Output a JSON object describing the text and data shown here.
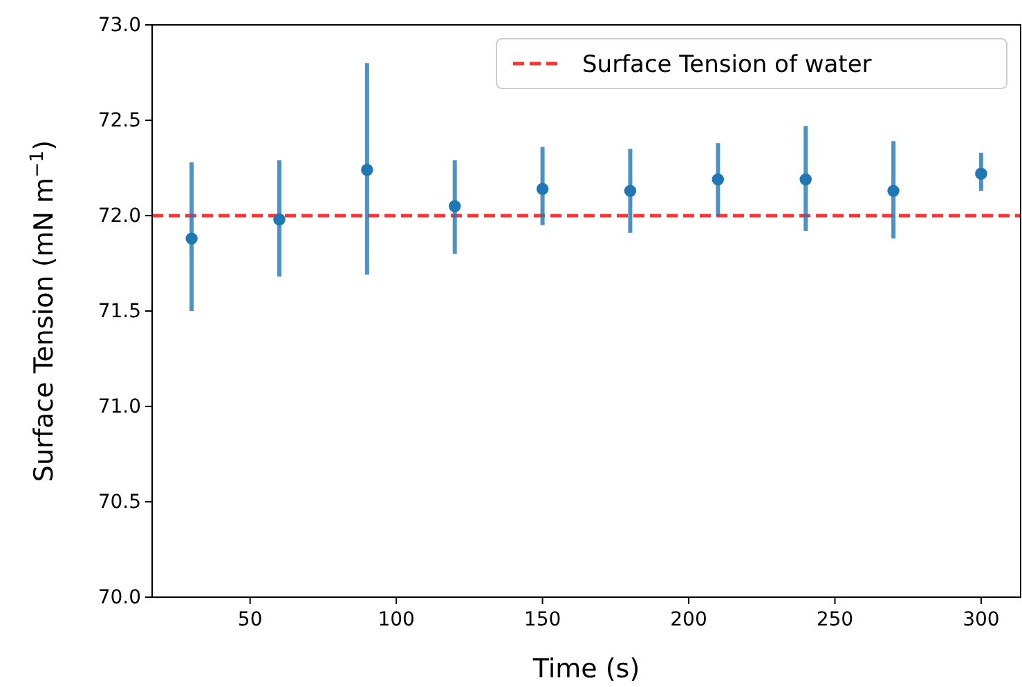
{
  "chart_data": {
    "type": "scatter",
    "xlabel": "Time (s)",
    "ylabel": "Surface Tension (mN m$^{−1}$)",
    "x": [
      30,
      60,
      90,
      120,
      150,
      180,
      210,
      240,
      270,
      300
    ],
    "series": [
      {
        "color": "#1f77b4",
        "values": [
          71.88,
          71.98,
          72.24,
          72.05,
          72.14,
          72.13,
          72.19,
          72.19,
          72.13,
          72.22
        ],
        "errors": [
          [
            71.5,
            72.28
          ],
          [
            71.68,
            72.29
          ],
          [
            71.69,
            72.8
          ],
          [
            71.8,
            72.29
          ],
          [
            71.95,
            72.36
          ],
          [
            71.91,
            72.35
          ],
          [
            72.0,
            72.38
          ],
          [
            71.92,
            72.47
          ],
          [
            71.88,
            72.39
          ],
          [
            72.13,
            72.33
          ]
        ]
      }
    ],
    "ref_lines": [
      {
        "axis": "y",
        "value": 72.0,
        "label": "Surface Tension of water",
        "color": "#ff0000",
        "line_style": "dashed"
      }
    ],
    "xlim": [
      16.5,
      313.5
    ],
    "xticks": [
      50,
      100,
      150,
      200,
      250,
      300
    ],
    "ylim": [
      70.0,
      73.0
    ],
    "yticks": [
      {
        "value": 70,
        "label": "70.0"
      },
      {
        "value": 70.5,
        "label": "70.5"
      },
      {
        "value": 71,
        "label": "71.0"
      },
      {
        "value": 71.5,
        "label": "71.5"
      },
      {
        "value": 72,
        "label": "72.0"
      },
      {
        "value": 72.5,
        "label": "72.5"
      },
      {
        "value": 73,
        "label": "73.0"
      }
    ],
    "marker": "circle",
    "grid": false,
    "legend": "top right"
  }
}
